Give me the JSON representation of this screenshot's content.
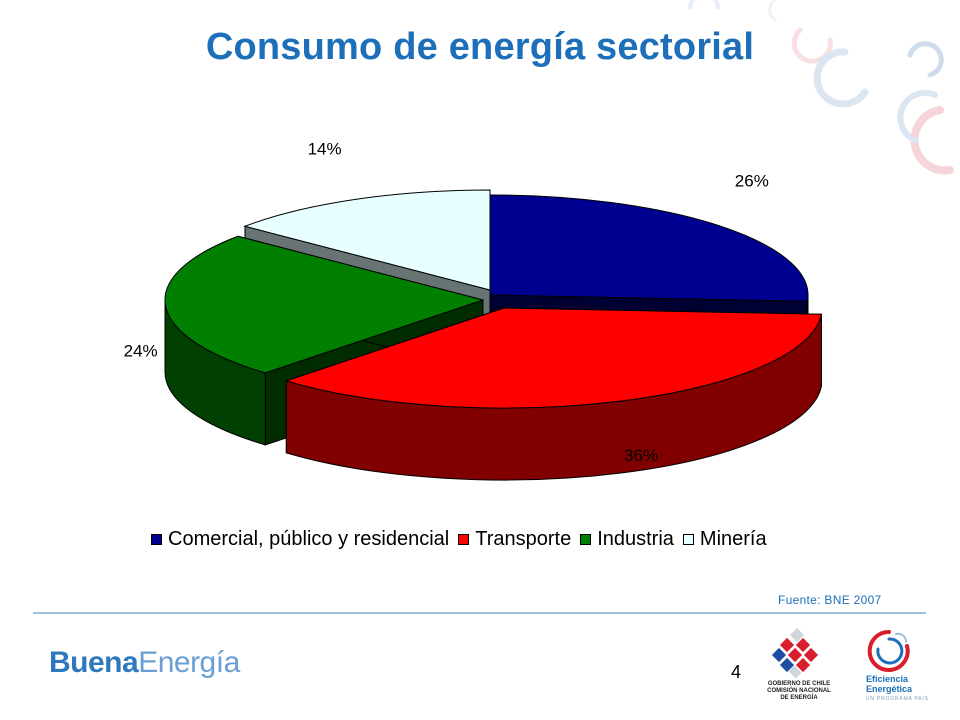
{
  "slide": {
    "title": "Consumo de energía sectorial",
    "source": "Fuente: BNE 2007",
    "page_number": "4"
  },
  "brand": {
    "word1": "Buena",
    "word2": "Energía"
  },
  "logos": {
    "gobierno_line1": "GOBIERNO DE CHILE",
    "gobierno_line2": "COMISIÓN NACIONAL",
    "gobierno_line3": "DE ENERGÍA",
    "eficiencia_line1": "Eficiencia",
    "eficiencia_line2": "Energética",
    "eficiencia_line3": "UN PROGRAMA PAÍS"
  },
  "colors": {
    "title": "#1c6fb8",
    "comercial": "#000090",
    "transporte": "#ff0000",
    "industria": "#007f00",
    "mineria": "#e8ffff"
  },
  "chart_data": {
    "type": "pie",
    "style": "3d-exploded",
    "title": "",
    "categories": [
      "Comercial, público y residencial",
      "Transporte",
      "Industria",
      "Minería"
    ],
    "values": [
      26,
      36,
      24,
      14
    ],
    "labels": [
      "26%",
      "36%",
      "24%",
      "14%"
    ],
    "legend_position": "bottom"
  }
}
